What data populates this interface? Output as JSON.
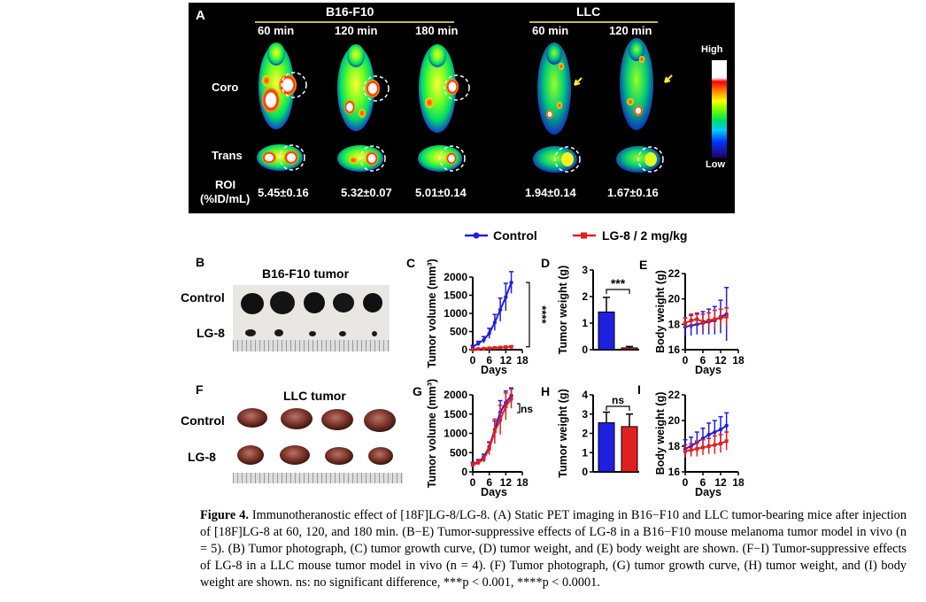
{
  "panelA": {
    "letter": "A",
    "group1": "B16-F10",
    "group2": "LLC",
    "times": [
      "60 min",
      "120 min",
      "180 min",
      "60 min",
      "120 min"
    ],
    "row_coro": "Coro",
    "row_trans": "Trans",
    "roi_label_1": "ROI",
    "roi_label_2": "(%ID/mL)",
    "roi_values": [
      "5.45±0.16",
      "5.32±0.07",
      "5.01±0.14",
      "1.94±0.14",
      "1.67±0.16"
    ],
    "scale_high": "High",
    "scale_low": "Low"
  },
  "legend": {
    "control": "Control",
    "treat": "LG-8 / 2 mg/kg",
    "control_color": "#1f1fe0",
    "treat_color": "#e02020"
  },
  "panelB": {
    "letter": "B",
    "title": "B16-F10 tumor",
    "row1": "Control",
    "row2": "LG-8"
  },
  "panelF": {
    "letter": "F",
    "title": "LLC tumor",
    "row1": "Control",
    "row2": "LG-8"
  },
  "chart_data": [
    {
      "panel": "C",
      "type": "line",
      "title": "",
      "xlabel": "Days",
      "ylabel": "Tumor volume (mm³)",
      "xlim": [
        0,
        18
      ],
      "ylim": [
        0,
        2000
      ],
      "xticks": [
        "0",
        "6",
        "12",
        "18"
      ],
      "yticks": [
        "0",
        "500",
        "1000",
        "1500",
        "2000"
      ],
      "x": [
        0,
        2,
        4,
        6,
        8,
        10,
        12,
        14
      ],
      "series": [
        {
          "name": "Control",
          "values": [
            80,
            170,
            270,
            450,
            750,
            1100,
            1450,
            1850
          ],
          "errors": [
            40,
            60,
            90,
            140,
            220,
            320,
            380,
            300
          ]
        },
        {
          "name": "LG-8 / 2 mg/kg",
          "values": [
            10,
            20,
            30,
            40,
            50,
            60,
            70,
            80
          ],
          "errors": [
            10,
            10,
            15,
            15,
            20,
            20,
            25,
            25
          ]
        }
      ],
      "annotation": "****"
    },
    {
      "panel": "D",
      "type": "bar",
      "xlabel": "",
      "ylabel": "Tumor weight (g)",
      "ylim": [
        0,
        3
      ],
      "yticks": [
        "0",
        "1",
        "2",
        "3"
      ],
      "categories": [
        "Control",
        "LG-8 / 2 mg/kg"
      ],
      "values": [
        1.42,
        0.07
      ],
      "errors": [
        0.55,
        0.05
      ],
      "annotation": "***"
    },
    {
      "panel": "E",
      "type": "line",
      "xlabel": "Days",
      "ylabel": "Body weight (g)",
      "xlim": [
        0,
        18
      ],
      "ylim": [
        16,
        22
      ],
      "xticks": [
        "0",
        "6",
        "12",
        "18"
      ],
      "yticks": [
        "16",
        "18",
        "20",
        "22"
      ],
      "x": [
        0,
        2,
        4,
        6,
        8,
        10,
        12,
        14
      ],
      "series": [
        {
          "name": "Control",
          "values": [
            17.8,
            17.9,
            18.0,
            18.1,
            18.2,
            18.3,
            18.6,
            18.8
          ],
          "errors": [
            0.7,
            0.8,
            0.8,
            0.9,
            1.0,
            1.1,
            1.3,
            2.1
          ]
        },
        {
          "name": "LG-8 / 2 mg/kg",
          "values": [
            18.1,
            18.3,
            18.4,
            18.2,
            18.3,
            18.4,
            18.5,
            18.6
          ],
          "errors": [
            0.4,
            0.5,
            0.5,
            0.6,
            0.6,
            0.7,
            0.7,
            0.7
          ]
        }
      ]
    },
    {
      "panel": "G",
      "type": "line",
      "xlabel": "Days",
      "ylabel": "Tumor volume (mm³)",
      "xlim": [
        0,
        18
      ],
      "ylim": [
        0,
        2000
      ],
      "xticks": [
        "0",
        "6",
        "12",
        "18"
      ],
      "yticks": [
        "0",
        "500",
        "1000",
        "1500",
        "2000"
      ],
      "x": [
        0,
        2,
        4,
        6,
        8,
        10,
        12,
        14
      ],
      "series": [
        {
          "name": "Control",
          "values": [
            200,
            260,
            380,
            650,
            1100,
            1550,
            1800,
            1980
          ],
          "errors": [
            50,
            60,
            80,
            130,
            220,
            300,
            300,
            200
          ]
        },
        {
          "name": "LG-8 / 2 mg/kg",
          "values": [
            180,
            240,
            330,
            600,
            1050,
            1350,
            1700,
            1900
          ],
          "errors": [
            50,
            60,
            80,
            160,
            320,
            380,
            350,
            250
          ]
        }
      ],
      "annotation": "ns"
    },
    {
      "panel": "H",
      "type": "bar",
      "xlabel": "",
      "ylabel": "Tumor weight (g)",
      "ylim": [
        0,
        4
      ],
      "yticks": [
        "0",
        "1",
        "2",
        "3",
        "4"
      ],
      "categories": [
        "Control",
        "LG-8 / 2 mg/kg"
      ],
      "values": [
        2.55,
        2.35
      ],
      "errors": [
        0.55,
        0.65
      ],
      "annotation": "ns"
    },
    {
      "panel": "I",
      "type": "line",
      "xlabel": "Days",
      "ylabel": "Body weight (g)",
      "xlim": [
        0,
        18
      ],
      "ylim": [
        16,
        22
      ],
      "xticks": [
        "0",
        "6",
        "12",
        "18"
      ],
      "yticks": [
        "16",
        "18",
        "20",
        "22"
      ],
      "x": [
        0,
        2,
        4,
        6,
        8,
        10,
        12,
        14
      ],
      "series": [
        {
          "name": "Control",
          "values": [
            17.8,
            18.0,
            18.3,
            18.6,
            18.9,
            19.1,
            19.3,
            19.6
          ],
          "errors": [
            0.7,
            0.7,
            0.8,
            0.8,
            0.9,
            0.9,
            1.0,
            1.0
          ]
        },
        {
          "name": "LG-8 / 2 mg/kg",
          "values": [
            17.6,
            17.7,
            17.8,
            17.9,
            18.0,
            18.1,
            18.2,
            18.4
          ],
          "errors": [
            0.5,
            0.5,
            0.6,
            0.6,
            0.6,
            0.7,
            0.7,
            0.7
          ]
        }
      ]
    }
  ],
  "caption": {
    "label": "Figure 4.",
    "text": " Immunotheranostic effect of [18F]LG-8/LG-8. (A) Static PET imaging in B16−F10 and LLC tumor-bearing mice after injection of [18F]LG-8 at 60, 120, and 180 min. (B−E) Tumor-suppressive effects of LG-8 in a B16−F10 mouse melanoma tumor model in vivo (n = 5). (B) Tumor photograph, (C) tumor growth curve, (D) tumor weight, and (E) body weight are shown. (F−I) Tumor-suppressive effects of LG-8 in a LLC mouse tumor model in vivo (n = 4). (F) Tumor photograph, (G) tumor growth curve, (H) tumor weight, and (I) body weight are shown. ns: no significant difference, ***p < 0.001, ****p < 0.0001."
  }
}
